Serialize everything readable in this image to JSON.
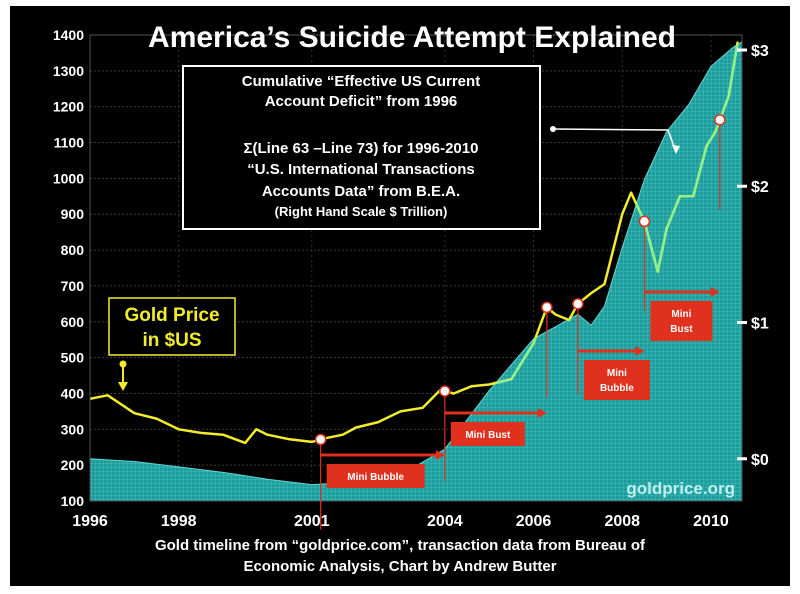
{
  "chart_data": {
    "type": "line",
    "title": "America’s Suicide Attempt Explained",
    "caption": [
      "Gold timeline from “goldprice.com”, transaction data from Bureau of",
      "Economic Analysis, Chart by Andrew Butter"
    ],
    "watermark": "goldprice.org",
    "x_ticks": [
      "1996",
      "1998",
      "2001",
      "2004",
      "2006",
      "2008",
      "2010"
    ],
    "x_tick_years": [
      1996.0,
      1998.0,
      2001.0,
      2004.0,
      2006.0,
      2008.0,
      2010.0
    ],
    "xlim": [
      1996.0,
      2010.7
    ],
    "left_axis": {
      "ticks": [
        100,
        200,
        300,
        400,
        500,
        600,
        700,
        800,
        900,
        1000,
        1100,
        1200,
        1300,
        1400
      ],
      "ylim": [
        100,
        1400
      ]
    },
    "right_axis": {
      "ticks": [
        "$0",
        "$1",
        "$2",
        "$3"
      ],
      "values": [
        0,
        1,
        2,
        3
      ],
      "ylim": [
        -0.31,
        3.11
      ]
    },
    "series": [
      {
        "name": "Gold Price in $US",
        "axis": "left",
        "color": "#f2ec2c",
        "x": [
          1996.0,
          1996.4,
          1997.0,
          1997.5,
          1998.0,
          1998.5,
          1999.0,
          1999.5,
          1999.75,
          2000.0,
          2000.5,
          2001.0,
          2001.3,
          2001.7,
          2002.0,
          2002.5,
          2003.0,
          2003.5,
          2003.9,
          2004.2,
          2004.6,
          2005.0,
          2005.5,
          2006.0,
          2006.3,
          2006.5,
          2006.8,
          2007.0,
          2007.3,
          2007.6,
          2008.0,
          2008.2,
          2008.5,
          2008.8,
          2009.0,
          2009.3,
          2009.6,
          2009.9,
          2010.1,
          2010.4,
          2010.6
        ],
        "values": [
          385,
          395,
          345,
          330,
          300,
          290,
          285,
          262,
          300,
          285,
          272,
          265,
          275,
          285,
          305,
          320,
          350,
          360,
          410,
          400,
          420,
          425,
          440,
          540,
          640,
          620,
          605,
          650,
          680,
          705,
          900,
          960,
          880,
          740,
          860,
          950,
          950,
          1090,
          1130,
          1230,
          1380
        ]
      },
      {
        "name": "Cumulative “Effective US Current Account Deficit” from 1996",
        "axis": "right",
        "type": "area",
        "color": "#21a6a6",
        "x": [
          1996.0,
          1997.0,
          1998.0,
          1999.0,
          2000.0,
          2001.0,
          2002.0,
          2003.0,
          2004.0,
          2005.0,
          2006.0,
          2007.0,
          2007.3,
          2007.6,
          2008.0,
          2008.5,
          2009.0,
          2009.5,
          2010.0,
          2010.5,
          2010.7
        ],
        "values": [
          0.0,
          -0.02,
          -0.06,
          -0.1,
          -0.15,
          -0.19,
          -0.17,
          -0.12,
          0.07,
          0.5,
          0.88,
          1.06,
          0.98,
          1.12,
          1.55,
          2.05,
          2.4,
          2.6,
          2.88,
          3.02,
          3.06
        ]
      }
    ],
    "callout_box": {
      "lines": [
        "Cumulative “Effective US Current",
        "Account Deficit” from 1996",
        "",
        "Σ(Line 63 –Line 73) for 1996-2010",
        "“U.S. International Transactions",
        "Accounts Data” from B.E.A.",
        "(Right Hand Scale $ Trillion)"
      ]
    },
    "gold_label": [
      "Gold Price",
      "in $US"
    ],
    "phases": [
      {
        "label": [
          "Mini Bubble"
        ],
        "start": 2001.2,
        "end": 2004.0
      },
      {
        "label": [
          "Mini Bust"
        ],
        "start": 2004.0,
        "end": 2006.3
      },
      {
        "label": [
          "Mini",
          "Bubble"
        ],
        "start": 2007.0,
        "end": 2008.5
      },
      {
        "label": [
          "Mini",
          "Bust"
        ],
        "start": 2008.5,
        "end": 2010.2
      }
    ],
    "markers": [
      2001.2,
      2004.0,
      2006.3,
      2007.0,
      2008.5,
      2010.2
    ]
  }
}
